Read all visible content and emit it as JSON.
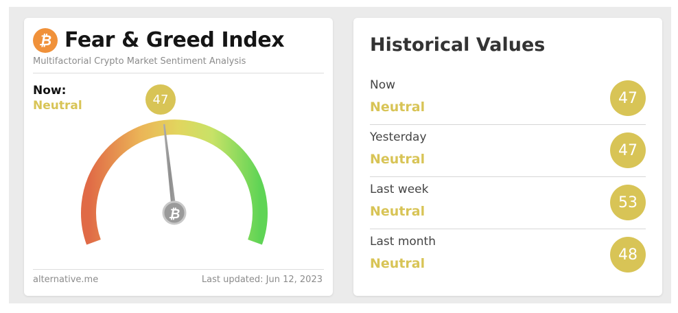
{
  "index_card": {
    "title": "Fear & Greed Index",
    "subtitle": "Multifactorial Crypto Market Sentiment Analysis",
    "logo_icon": "bitcoin-icon",
    "now_label": "Now:",
    "now_status": "Neutral",
    "now_value": "47",
    "gauge_value": 47,
    "gauge_range": [
      0,
      100
    ],
    "source": "alternative.me",
    "last_updated": "Last updated: Jun 12, 2023",
    "colors": {
      "neutral": "#d8c456",
      "logo": "#f0913a",
      "fear": "#e06a46",
      "greed": "#5fd455"
    }
  },
  "historical": {
    "title": "Historical Values",
    "rows": [
      {
        "label": "Now",
        "status": "Neutral",
        "value": "47"
      },
      {
        "label": "Yesterday",
        "status": "Neutral",
        "value": "47"
      },
      {
        "label": "Last week",
        "status": "Neutral",
        "value": "53"
      },
      {
        "label": "Last month",
        "status": "Neutral",
        "value": "48"
      }
    ]
  }
}
